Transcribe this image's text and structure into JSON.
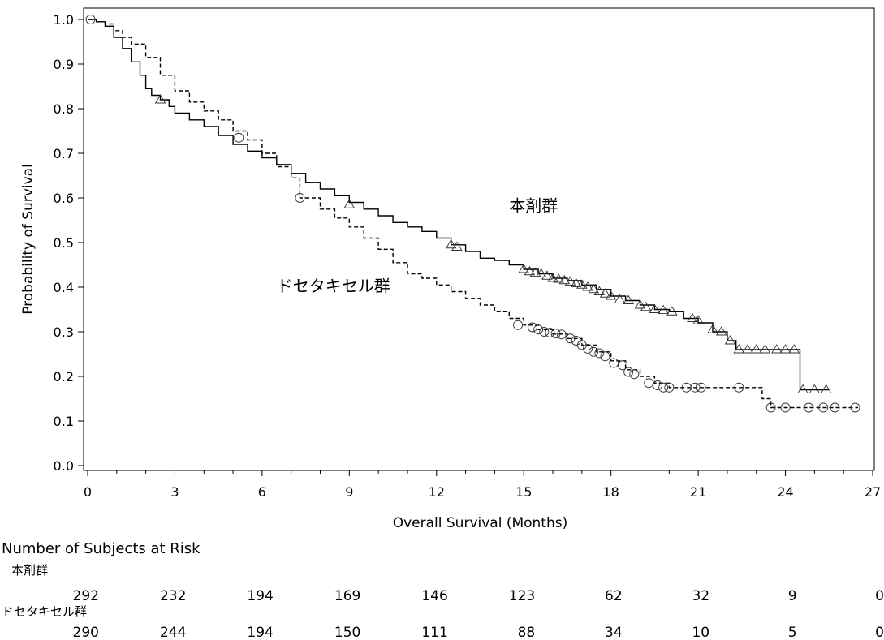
{
  "chart_data": {
    "type": "line",
    "xlabel": "Overall Survival (Months)",
    "ylabel": "Probability of Survival",
    "xlim": [
      0,
      27
    ],
    "ylim": [
      0,
      1.0
    ],
    "x_ticks": [
      0,
      3,
      6,
      9,
      12,
      15,
      18,
      21,
      24,
      27
    ],
    "y_ticks": [
      "0.0",
      "0.1",
      "0.2",
      "0.3",
      "0.4",
      "0.5",
      "0.6",
      "0.7",
      "0.8",
      "0.9",
      "1.0"
    ],
    "grid": false,
    "series": [
      {
        "name": "本剤群",
        "line_style": "solid",
        "censor_marker": "triangle",
        "label_position": {
          "x": 14.5,
          "y": 0.57
        },
        "points": [
          [
            0,
            1.0
          ],
          [
            0.3,
            0.995
          ],
          [
            0.6,
            0.985
          ],
          [
            0.9,
            0.96
          ],
          [
            1.2,
            0.935
          ],
          [
            1.5,
            0.905
          ],
          [
            1.8,
            0.875
          ],
          [
            2.0,
            0.845
          ],
          [
            2.2,
            0.83
          ],
          [
            2.5,
            0.82
          ],
          [
            2.8,
            0.805
          ],
          [
            3.0,
            0.79
          ],
          [
            3.5,
            0.775
          ],
          [
            4.0,
            0.76
          ],
          [
            4.5,
            0.74
          ],
          [
            5.0,
            0.72
          ],
          [
            5.5,
            0.705
          ],
          [
            6.0,
            0.69
          ],
          [
            6.5,
            0.675
          ],
          [
            7.0,
            0.655
          ],
          [
            7.5,
            0.635
          ],
          [
            8.0,
            0.62
          ],
          [
            8.5,
            0.605
          ],
          [
            9.0,
            0.59
          ],
          [
            9.5,
            0.575
          ],
          [
            10.0,
            0.56
          ],
          [
            10.5,
            0.545
          ],
          [
            11.0,
            0.535
          ],
          [
            11.5,
            0.525
          ],
          [
            12.0,
            0.51
          ],
          [
            12.5,
            0.495
          ],
          [
            13.0,
            0.48
          ],
          [
            13.5,
            0.465
          ],
          [
            14.0,
            0.46
          ],
          [
            14.5,
            0.45
          ],
          [
            15.0,
            0.44
          ],
          [
            15.5,
            0.43
          ],
          [
            16.0,
            0.42
          ],
          [
            16.5,
            0.415
          ],
          [
            17.0,
            0.405
          ],
          [
            17.5,
            0.395
          ],
          [
            18.0,
            0.38
          ],
          [
            18.5,
            0.37
          ],
          [
            19.0,
            0.36
          ],
          [
            19.5,
            0.35
          ],
          [
            20.0,
            0.345
          ],
          [
            20.5,
            0.33
          ],
          [
            21.0,
            0.32
          ],
          [
            21.5,
            0.3
          ],
          [
            22.0,
            0.28
          ],
          [
            22.3,
            0.26
          ],
          [
            23.0,
            0.26
          ],
          [
            24.0,
            0.26
          ],
          [
            24.5,
            0.26
          ],
          [
            24.5,
            0.17
          ],
          [
            25.5,
            0.17
          ]
        ],
        "censored": [
          [
            2.5,
            0.82
          ],
          [
            9.0,
            0.585
          ],
          [
            12.5,
            0.495
          ],
          [
            12.7,
            0.49
          ],
          [
            15.0,
            0.44
          ],
          [
            15.2,
            0.435
          ],
          [
            15.4,
            0.432
          ],
          [
            15.6,
            0.43
          ],
          [
            15.8,
            0.425
          ],
          [
            16.0,
            0.42
          ],
          [
            16.2,
            0.418
          ],
          [
            16.4,
            0.415
          ],
          [
            16.6,
            0.412
          ],
          [
            16.8,
            0.408
          ],
          [
            17.0,
            0.405
          ],
          [
            17.2,
            0.4
          ],
          [
            17.4,
            0.395
          ],
          [
            17.6,
            0.39
          ],
          [
            17.8,
            0.385
          ],
          [
            18.0,
            0.38
          ],
          [
            18.3,
            0.372
          ],
          [
            18.6,
            0.37
          ],
          [
            19.0,
            0.36
          ],
          [
            19.2,
            0.355
          ],
          [
            19.5,
            0.35
          ],
          [
            19.8,
            0.348
          ],
          [
            20.1,
            0.345
          ],
          [
            20.8,
            0.33
          ],
          [
            21.0,
            0.325
          ],
          [
            21.5,
            0.305
          ],
          [
            21.8,
            0.3
          ],
          [
            22.1,
            0.28
          ],
          [
            22.4,
            0.26
          ],
          [
            22.7,
            0.26
          ],
          [
            23.0,
            0.26
          ],
          [
            23.3,
            0.26
          ],
          [
            23.7,
            0.26
          ],
          [
            24.0,
            0.26
          ],
          [
            24.3,
            0.26
          ],
          [
            24.6,
            0.17
          ],
          [
            25.0,
            0.17
          ],
          [
            25.4,
            0.17
          ]
        ]
      },
      {
        "name": "ドセタキセル群",
        "line_style": "dashed",
        "censor_marker": "circle",
        "label_position": {
          "x": 6.5,
          "y": 0.39
        },
        "points": [
          [
            0,
            1.0
          ],
          [
            0.3,
            0.995
          ],
          [
            0.6,
            0.99
          ],
          [
            0.9,
            0.975
          ],
          [
            1.2,
            0.96
          ],
          [
            1.5,
            0.945
          ],
          [
            2.0,
            0.915
          ],
          [
            2.5,
            0.875
          ],
          [
            3.0,
            0.84
          ],
          [
            3.5,
            0.815
          ],
          [
            4.0,
            0.795
          ],
          [
            4.5,
            0.775
          ],
          [
            5.0,
            0.75
          ],
          [
            5.5,
            0.73
          ],
          [
            6.0,
            0.7
          ],
          [
            6.5,
            0.67
          ],
          [
            7.0,
            0.645
          ],
          [
            7.3,
            0.6
          ],
          [
            8.0,
            0.575
          ],
          [
            8.5,
            0.555
          ],
          [
            9.0,
            0.535
          ],
          [
            9.5,
            0.51
          ],
          [
            10.0,
            0.485
          ],
          [
            10.5,
            0.455
          ],
          [
            11.0,
            0.43
          ],
          [
            11.5,
            0.42
          ],
          [
            12.0,
            0.405
          ],
          [
            12.5,
            0.39
          ],
          [
            13.0,
            0.375
          ],
          [
            13.5,
            0.36
          ],
          [
            14.0,
            0.345
          ],
          [
            14.5,
            0.33
          ],
          [
            15.0,
            0.315
          ],
          [
            15.5,
            0.305
          ],
          [
            16.0,
            0.295
          ],
          [
            16.5,
            0.285
          ],
          [
            17.0,
            0.27
          ],
          [
            17.5,
            0.255
          ],
          [
            18.0,
            0.235
          ],
          [
            18.5,
            0.215
          ],
          [
            19.0,
            0.2
          ],
          [
            19.5,
            0.185
          ],
          [
            20.0,
            0.175
          ],
          [
            20.5,
            0.175
          ],
          [
            21.0,
            0.175
          ],
          [
            22.0,
            0.175
          ],
          [
            23.0,
            0.175
          ],
          [
            23.2,
            0.15
          ],
          [
            23.5,
            0.13
          ],
          [
            24.0,
            0.13
          ],
          [
            25.0,
            0.13
          ],
          [
            26.5,
            0.13
          ]
        ],
        "censored": [
          [
            0.1,
            1.0
          ],
          [
            5.2,
            0.735
          ],
          [
            7.3,
            0.6
          ],
          [
            14.8,
            0.315
          ],
          [
            15.3,
            0.31
          ],
          [
            15.5,
            0.305
          ],
          [
            15.7,
            0.3
          ],
          [
            15.9,
            0.298
          ],
          [
            16.1,
            0.296
          ],
          [
            16.3,
            0.294
          ],
          [
            16.6,
            0.285
          ],
          [
            16.8,
            0.28
          ],
          [
            17.0,
            0.27
          ],
          [
            17.2,
            0.262
          ],
          [
            17.4,
            0.255
          ],
          [
            17.6,
            0.252
          ],
          [
            17.8,
            0.245
          ],
          [
            18.1,
            0.23
          ],
          [
            18.4,
            0.225
          ],
          [
            18.6,
            0.21
          ],
          [
            18.8,
            0.205
          ],
          [
            19.3,
            0.185
          ],
          [
            19.6,
            0.18
          ],
          [
            19.8,
            0.175
          ],
          [
            20.0,
            0.175
          ],
          [
            20.6,
            0.175
          ],
          [
            20.9,
            0.175
          ],
          [
            21.1,
            0.175
          ],
          [
            22.4,
            0.175
          ],
          [
            23.5,
            0.13
          ],
          [
            24.0,
            0.13
          ],
          [
            24.8,
            0.13
          ],
          [
            25.3,
            0.13
          ],
          [
            25.7,
            0.13
          ],
          [
            26.4,
            0.13
          ]
        ]
      }
    ]
  },
  "risk_table": {
    "title": "Number of Subjects at Risk",
    "rows": [
      {
        "label": "本剤群",
        "values": [
          "292",
          "232",
          "194",
          "169",
          "146",
          "123",
          "62",
          "32",
          "9",
          "0"
        ]
      },
      {
        "label": "ドセタキセル群",
        "values": [
          "290",
          "244",
          "194",
          "150",
          "111",
          "88",
          "34",
          "10",
          "5",
          "0"
        ]
      }
    ]
  }
}
